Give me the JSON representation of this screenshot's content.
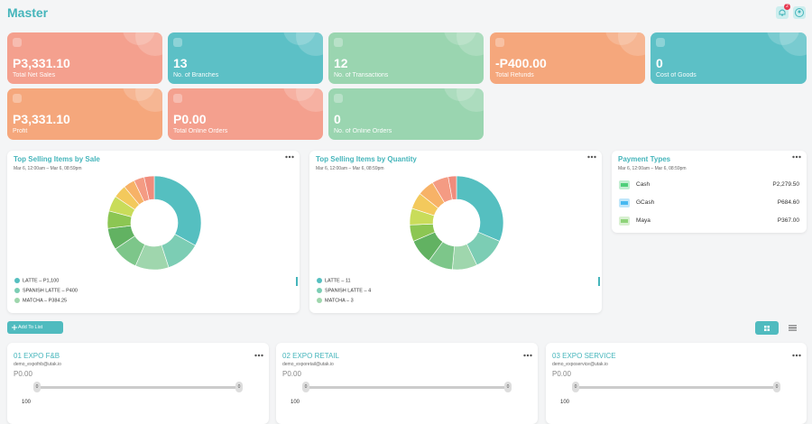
{
  "header": {
    "title": "Master",
    "notification_count": "2"
  },
  "stat_cards": [
    {
      "value": "P3,331.10",
      "label": "Total Net Sales",
      "color": "#f4a08e"
    },
    {
      "value": "13",
      "label": "No. of Branches",
      "color": "#5cc0c6"
    },
    {
      "value": "12",
      "label": "No. of Transactions",
      "color": "#9ad5b0"
    },
    {
      "value": "-P400.00",
      "label": "Total Refunds",
      "color": "#f5a77c"
    },
    {
      "value": "0",
      "label": "Cost of Goods",
      "color": "#5cc0c6"
    },
    {
      "value": "P3,331.10",
      "label": "Profit",
      "color": "#f5a77c"
    },
    {
      "value": "P0.00",
      "label": "Total Online Orders",
      "color": "#f4a08e"
    },
    {
      "value": "0",
      "label": "No. of Online Orders",
      "color": "#9ad5b0"
    }
  ],
  "sales_chart": {
    "title": "Top Selling Items by Sale",
    "date_range": "Mar 6, 12:00am – Mar 6, 08:59pm",
    "slices": [
      {
        "value": 1100,
        "color": "#55bfc0"
      },
      {
        "value": 400,
        "color": "#7ccdb4"
      },
      {
        "value": 384.25,
        "color": "#9fd6ad"
      },
      {
        "value": 300,
        "color": "#7dc68a"
      },
      {
        "value": 250,
        "color": "#62b262"
      },
      {
        "value": 200,
        "color": "#8cc653"
      },
      {
        "value": 180,
        "color": "#c9dc5a"
      },
      {
        "value": 150,
        "color": "#f3c95c"
      },
      {
        "value": 130,
        "color": "#f7b267"
      },
      {
        "value": 120,
        "color": "#f49b83"
      },
      {
        "value": 117,
        "color": "#f08c7c"
      }
    ],
    "legend": [
      "LATTE – P1,100",
      "SPANISH LATTE – P400",
      "MATCHA – P384.25"
    ]
  },
  "quantity_chart": {
    "title": "Top Selling Items by Quantity",
    "date_range": "Mar 6, 12:00am – Mar 6, 08:59pm",
    "slices": [
      {
        "value": 11,
        "color": "#55bfc0"
      },
      {
        "value": 4,
        "color": "#7ccdb4"
      },
      {
        "value": 3,
        "color": "#9fd6ad"
      },
      {
        "value": 3,
        "color": "#7dc68a"
      },
      {
        "value": 3,
        "color": "#62b262"
      },
      {
        "value": 2,
        "color": "#8cc653"
      },
      {
        "value": 2,
        "color": "#c9dc5a"
      },
      {
        "value": 2,
        "color": "#f3c95c"
      },
      {
        "value": 2,
        "color": "#f7b267"
      },
      {
        "value": 2,
        "color": "#f49b83"
      },
      {
        "value": 1,
        "color": "#f08c7c"
      }
    ],
    "legend": [
      "LATTE – 11",
      "SPANISH LATTE – 4",
      "MATCHA – 3"
    ]
  },
  "payment_types": {
    "title": "Payment Types",
    "date_range": "Mar 6, 12:00am – Mar 6, 08:59pm",
    "rows": [
      {
        "name": "Cash",
        "amount": "P2,279.50",
        "color": "#4fcf7a"
      },
      {
        "name": "GCash",
        "amount": "P684.60",
        "color": "#47b8f0"
      },
      {
        "name": "Maya",
        "amount": "P367.00",
        "color": "#8fd37a"
      }
    ]
  },
  "add_button": "Add To List",
  "stores": [
    {
      "name": "01 EXPO F&B",
      "email": "demo_expofnb@utak.io",
      "amount": "P0.00",
      "min": "0",
      "max": "0",
      "value": "100"
    },
    {
      "name": "02 EXPO RETAIL",
      "email": "demo_exporetail@utak.io",
      "amount": "P0.00",
      "min": "0",
      "max": "0",
      "value": "100"
    },
    {
      "name": "03 EXPO SERVICE",
      "email": "demo_exposervice@utak.io",
      "amount": "P0.00",
      "min": "0",
      "max": "0",
      "value": "100"
    }
  ]
}
